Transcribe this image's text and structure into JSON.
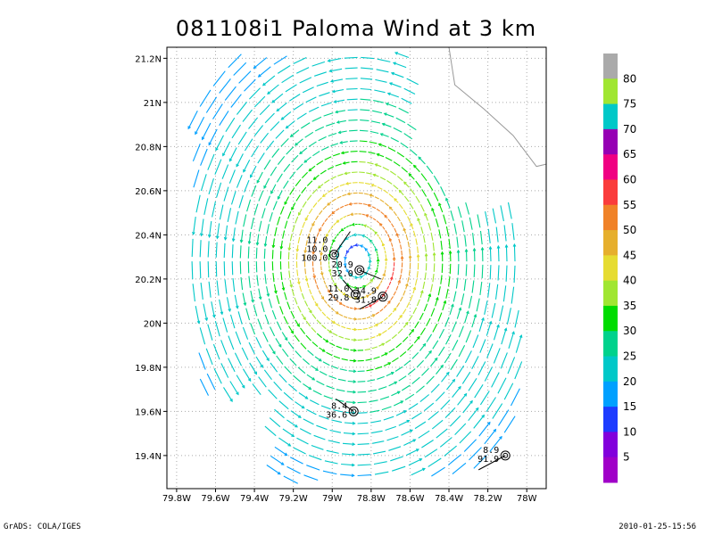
{
  "chart_data": {
    "type": "streamline",
    "title": "081108i1 Paloma Wind at 3 km",
    "xlabel": "",
    "ylabel": "",
    "x_ticks": [
      "79.8W",
      "79.6W",
      "79.4W",
      "79.2W",
      "79W",
      "78.8W",
      "78.6W",
      "78.4W",
      "78.2W",
      "78W"
    ],
    "y_ticks": [
      "19.4N",
      "19.6N",
      "19.8N",
      "20N",
      "20.2N",
      "20.4N",
      "20.6N",
      "20.8N",
      "21N",
      "21.2N"
    ],
    "xlim": [
      -79.85,
      -77.9
    ],
    "ylim": [
      19.25,
      21.25
    ],
    "grid": true,
    "center": {
      "lon": -78.88,
      "lat": 20.3
    },
    "colorbar": {
      "levels": [
        5,
        10,
        15,
        20,
        25,
        30,
        35,
        40,
        45,
        50,
        55,
        60,
        65,
        70,
        75,
        80
      ],
      "colors": [
        "#a000c8",
        "#8200dc",
        "#1e3cff",
        "#00a0ff",
        "#00c8c8",
        "#00d28c",
        "#00dc00",
        "#a0e632",
        "#e6dc32",
        "#e6af2d",
        "#f08228",
        "#fa3c3c",
        "#f00082",
        "#9600b4",
        "#00c8c8",
        "#a0e632",
        "#aaaaaa"
      ]
    },
    "observations": [
      {
        "lon": -78.99,
        "lat": 20.31,
        "labels": [
          "11.0",
          "10.0",
          "100.0"
        ]
      },
      {
        "lon": -78.86,
        "lat": 20.24,
        "labels": [
          "20.9",
          "32.0"
        ]
      },
      {
        "lon": -78.88,
        "lat": 20.13,
        "labels": [
          "11.0",
          "29.8"
        ]
      },
      {
        "lon": -78.74,
        "lat": 20.12,
        "labels": [
          "14.9",
          "31.8"
        ]
      },
      {
        "lon": -78.89,
        "lat": 19.6,
        "labels": [
          "8.4",
          "36.6"
        ]
      },
      {
        "lon": -78.11,
        "lat": 19.4,
        "labels": [
          "8.9",
          "91.9"
        ]
      }
    ]
  },
  "footer": {
    "left": "GrADS: COLA/IGES",
    "right": "2010-01-25-15:56"
  }
}
